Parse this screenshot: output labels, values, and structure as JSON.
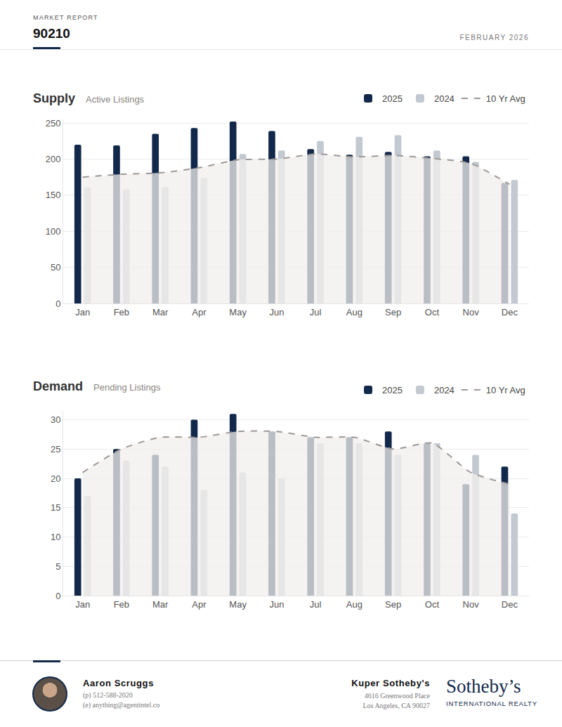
{
  "header": {
    "label": "MARKET REPORT",
    "title": "90210",
    "date": "FEBRUARY 2026"
  },
  "chart_data": [
    {
      "type": "bar",
      "title": "Supply",
      "subtitle": "Active Listings",
      "categories": [
        "Jan",
        "Feb",
        "Mar",
        "Apr",
        "May",
        "Jun",
        "Jul",
        "Aug",
        "Sep",
        "Oct",
        "Nov",
        "Dec"
      ],
      "series": [
        {
          "name": "2025",
          "color": "#13294b",
          "values": [
            220,
            219,
            235,
            243,
            252,
            239,
            214,
            206,
            210,
            204,
            204,
            167
          ]
        },
        {
          "name": "2024",
          "color": "#c3c9d1",
          "values": [
            161,
            158,
            161,
            174,
            207,
            212,
            225,
            231,
            233,
            212,
            196,
            171
          ]
        },
        {
          "name": "10 Yr Avg",
          "type": "line",
          "line_style": "dashed",
          "color": "#9e9896",
          "values": [
            175,
            179,
            181,
            188,
            199,
            200,
            207,
            203,
            205,
            201,
            194,
            165
          ]
        }
      ],
      "ylim": [
        0,
        255
      ],
      "yticks": [
        0,
        50,
        100,
        150,
        200,
        250
      ],
      "grid": true,
      "legend": "top right"
    },
    {
      "type": "bar",
      "title": "Demand",
      "subtitle": "Pending Listings",
      "categories": [
        "Jan",
        "Feb",
        "Mar",
        "Apr",
        "May",
        "Jun",
        "Jul",
        "Aug",
        "Sep",
        "Oct",
        "Nov",
        "Dec"
      ],
      "series": [
        {
          "name": "2025",
          "color": "#13294b",
          "values": [
            20,
            25,
            24,
            30,
            31,
            28,
            27,
            27,
            28,
            26,
            19,
            22
          ]
        },
        {
          "name": "2024",
          "color": "#c3c9d1",
          "values": [
            17,
            23,
            22,
            18,
            21,
            20,
            26,
            26,
            24,
            26,
            24,
            14
          ]
        },
        {
          "name": "10 Yr Avg",
          "type": "line",
          "line_style": "dashed",
          "color": "#9e9896",
          "values": [
            21,
            25,
            27,
            27,
            28,
            28,
            27,
            27,
            25,
            26,
            21,
            19
          ]
        }
      ],
      "ylim": [
        0,
        31.5
      ],
      "yticks": [
        0,
        5,
        10,
        15,
        20,
        25,
        30
      ],
      "grid": true,
      "legend": "top right"
    }
  ],
  "footer": {
    "agent": {
      "name": "Aaron Scruggs",
      "phone": "(p) 512-588-2020",
      "email": "(e) anything@agentintel.co"
    },
    "office": {
      "name": "Kuper Sotheby's",
      "address": [
        "4616 Greenwood Place",
        "Los Angeles, CA 90027"
      ]
    },
    "logo": {
      "name": "Sotheby’s",
      "tagline": "INTERNATIONAL REALTY"
    }
  }
}
